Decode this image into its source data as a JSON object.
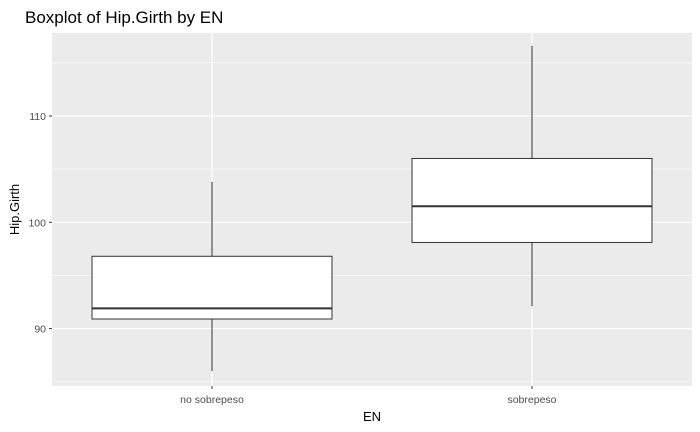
{
  "chart_data": {
    "type": "boxplot",
    "title": "Boxplot of Hip.Girth by EN",
    "xlabel": "EN",
    "ylabel": "Hip.Girth",
    "categories": [
      "no sobrepeso",
      "sobrepeso"
    ],
    "boxes": [
      {
        "category": "no sobrepeso",
        "min": 86.0,
        "q1": 90.9,
        "median": 91.9,
        "q3": 96.8,
        "max": 103.8
      },
      {
        "category": "sobrepeso",
        "min": 92.1,
        "q1": 98.1,
        "median": 101.5,
        "q3": 106.0,
        "max": 116.6
      }
    ],
    "yticks": [
      90,
      100,
      110
    ],
    "ytick_labels": [
      "90",
      "100",
      "110"
    ],
    "ylim": [
      84.6,
      117.8
    ],
    "grid": true,
    "colors": {
      "panel": "#ebebeb",
      "grid": "#ffffff",
      "box_fill": "#ffffff",
      "box_stroke": "#333333"
    }
  }
}
